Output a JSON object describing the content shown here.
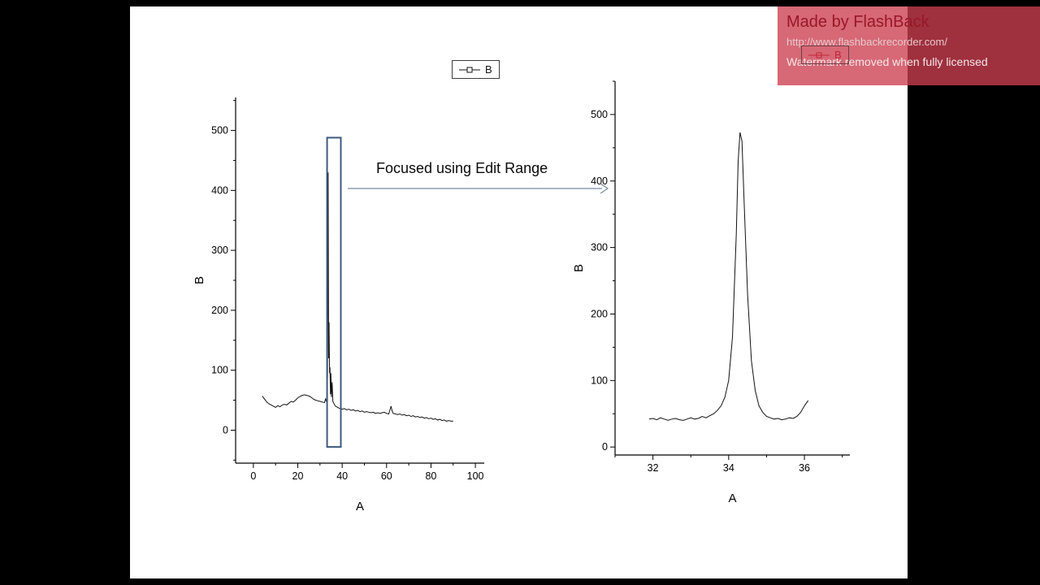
{
  "watermark": {
    "title": "Made by FlashBack",
    "url": "http://www.flashbackrecorder.com/",
    "note": "Watermark removed when fully licensed"
  },
  "annotation": {
    "label": "Focused using Edit Range"
  },
  "colors": {
    "selection_box": "#3d5a80",
    "arrow": "#7a8ba3",
    "series_line": "#111111",
    "watermark_bg": "#cc3e4f",
    "watermark_title": "#991726"
  },
  "chart_data": [
    {
      "type": "line",
      "xlabel": "A",
      "ylabel": "B",
      "legend": "B",
      "xlim": [
        -8,
        104
      ],
      "ylim": [
        -55,
        555
      ],
      "xticks": [
        0,
        20,
        40,
        60,
        80,
        100
      ],
      "yticks": [
        0,
        100,
        200,
        300,
        400,
        500
      ],
      "xminor_step": 10,
      "yminor_step": 50,
      "selection": {
        "x1": 33.2,
        "x2": 39.4,
        "y1": -28,
        "y2": 488
      },
      "series": [
        {
          "name": "B",
          "x": [
            4,
            5,
            6,
            7,
            8,
            9,
            10,
            11,
            12,
            13,
            14,
            15,
            16,
            17,
            18,
            19,
            20,
            21,
            22,
            23,
            24,
            25,
            26,
            27,
            28,
            29,
            30,
            31,
            32,
            32.5,
            33,
            33.4,
            33.7,
            33.9,
            34.1,
            34.3,
            34.5,
            34.7,
            34.9,
            35.2,
            35.5,
            35.8,
            36.2,
            36.6,
            37,
            38,
            39,
            40,
            41,
            42,
            43,
            44,
            45,
            46,
            47,
            48,
            49,
            50,
            51,
            52,
            53,
            54,
            55,
            56,
            57,
            58,
            59,
            60,
            61,
            62,
            62.5,
            63,
            64,
            65,
            66,
            67,
            68,
            69,
            70,
            71,
            72,
            73,
            74,
            75,
            76,
            77,
            78,
            79,
            80,
            81,
            82,
            83,
            84,
            85,
            86,
            87,
            88,
            89,
            90
          ],
          "y": [
            57,
            52,
            47,
            44,
            42,
            40,
            38,
            41,
            39,
            42,
            43,
            42,
            45,
            48,
            47,
            50,
            54,
            56,
            58,
            59,
            58,
            57,
            55,
            52,
            50,
            49,
            48,
            47,
            46,
            52,
            47,
            90,
            430,
            120,
            180,
            95,
            105,
            60,
            95,
            55,
            80,
            48,
            45,
            42,
            40,
            38,
            36,
            35,
            36,
            34,
            35,
            33,
            34,
            32,
            33,
            31,
            32,
            30,
            31,
            30,
            29,
            30,
            28,
            29,
            28,
            29,
            30,
            28,
            27,
            40,
            32,
            28,
            27,
            26,
            27,
            25,
            26,
            24,
            25,
            23,
            24,
            22,
            23,
            21,
            22,
            20,
            21,
            19,
            20,
            18,
            19,
            17,
            18,
            16,
            17,
            15,
            16,
            15,
            15
          ]
        }
      ]
    },
    {
      "type": "line",
      "xlabel": "A",
      "ylabel": "B",
      "legend": "B",
      "xlim": [
        31,
        37.2
      ],
      "ylim": [
        -12,
        550
      ],
      "xticks": [
        32,
        34,
        36
      ],
      "yticks": [
        0,
        100,
        200,
        300,
        400,
        500
      ],
      "xminor_step": 1,
      "yminor_step": 50,
      "series": [
        {
          "name": "B",
          "x": [
            31.9,
            32,
            32.1,
            32.2,
            32.3,
            32.4,
            32.5,
            32.6,
            32.7,
            32.8,
            32.9,
            33,
            33.1,
            33.2,
            33.3,
            33.4,
            33.5,
            33.6,
            33.7,
            33.8,
            33.9,
            34,
            34.1,
            34.2,
            34.25,
            34.3,
            34.35,
            34.4,
            34.5,
            34.6,
            34.7,
            34.8,
            34.9,
            35,
            35.1,
            35.2,
            35.3,
            35.4,
            35.5,
            35.6,
            35.7,
            35.8,
            35.9,
            36,
            36.1
          ],
          "y": [
            42,
            43,
            41,
            44,
            42,
            40,
            42,
            43,
            41,
            40,
            42,
            44,
            42,
            43,
            46,
            44,
            47,
            50,
            55,
            62,
            75,
            100,
            165,
            320,
            430,
            473,
            460,
            380,
            230,
            130,
            85,
            62,
            52,
            46,
            44,
            42,
            43,
            41,
            42,
            44,
            43,
            46,
            52,
            62,
            70
          ]
        }
      ]
    }
  ]
}
